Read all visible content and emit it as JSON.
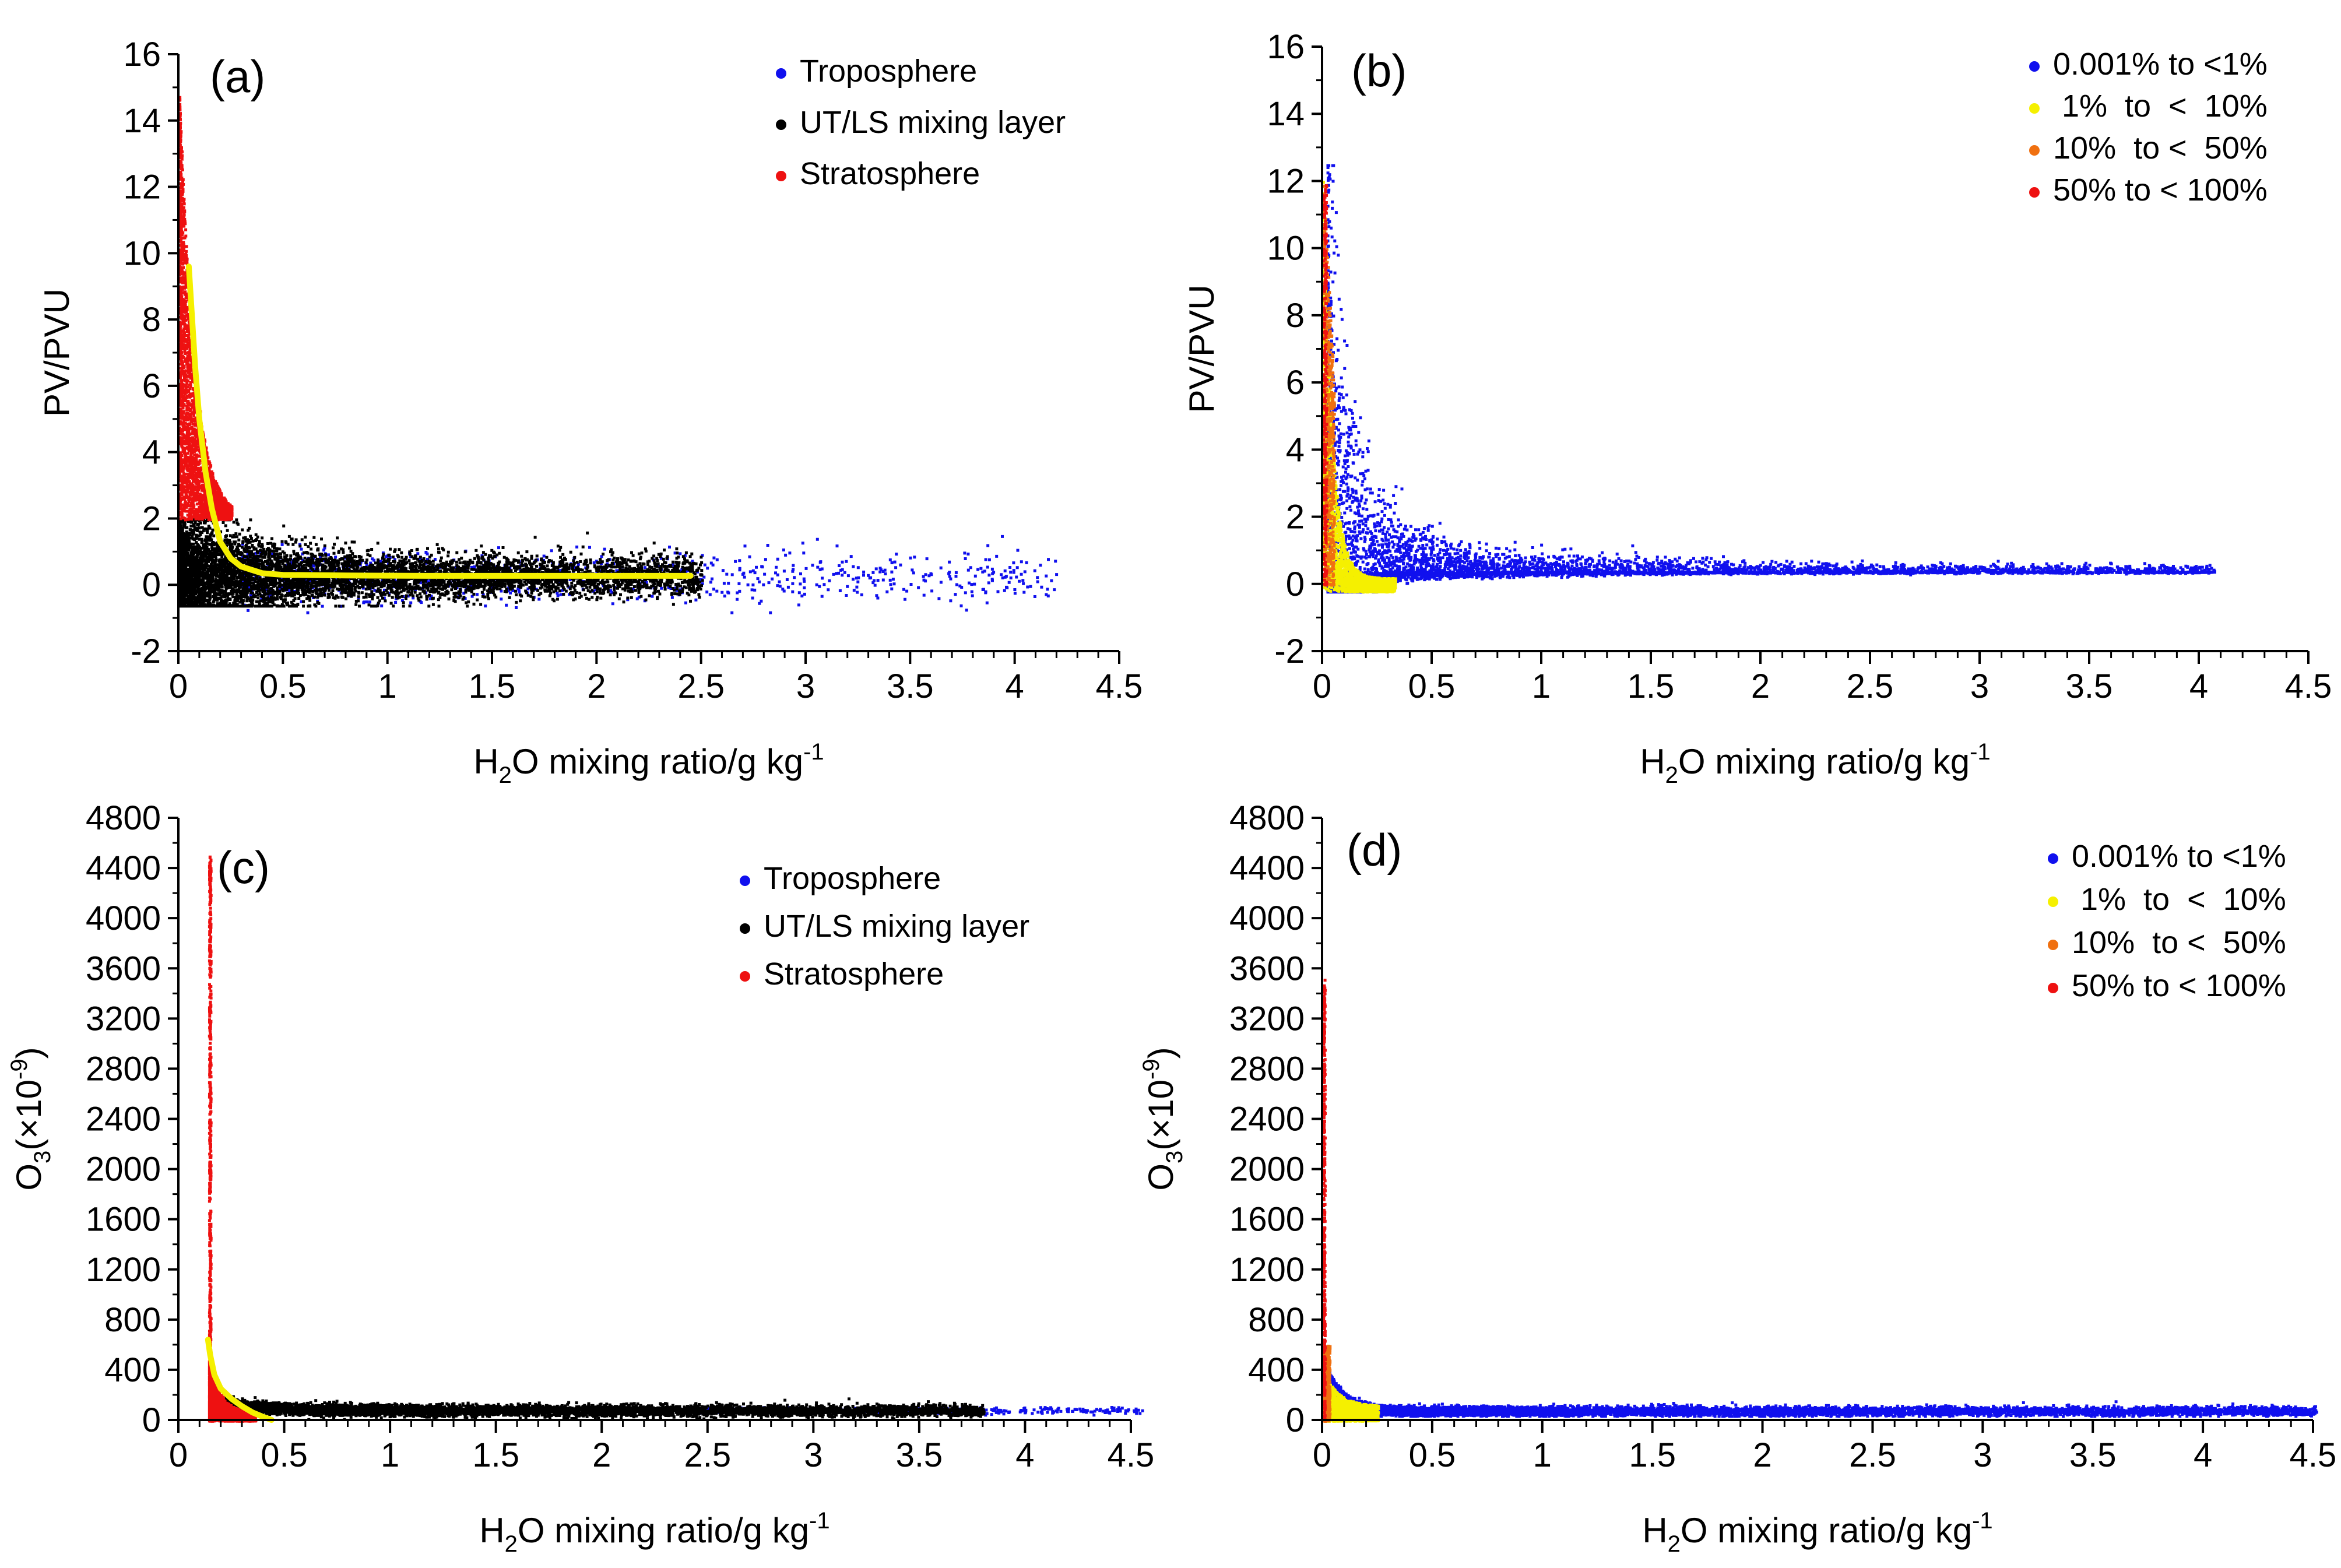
{
  "chart_data": [
    {
      "panel": "(a)",
      "type": "scatter",
      "xlabel_main": "H",
      "xlabel_sub": "2",
      "xlabel_rest": "O mixing ratio/g kg",
      "xlabel_sup": "-1",
      "ylabel": "PV/PVU",
      "xlim": [
        0,
        4.5
      ],
      "ylim": [
        -2,
        16
      ],
      "xticks": [
        0,
        0.5,
        1,
        1.5,
        2,
        2.5,
        3,
        3.5,
        4,
        4.5
      ],
      "xtick_labels": [
        "0",
        "0.5",
        "1",
        "1.5",
        "2",
        "2.5",
        "3",
        "3.5",
        "4",
        "4.5"
      ],
      "yticks": [
        -2,
        0,
        2,
        4,
        6,
        8,
        10,
        12,
        14,
        16
      ],
      "ytick_labels": [
        "-2",
        "0",
        "2",
        "4",
        "6",
        "8",
        "10",
        "12",
        "14",
        "16"
      ],
      "legend": [
        {
          "label": "Troposphere",
          "color": "#1010ee"
        },
        {
          "label": "UT/LS mixing layer",
          "color": "#000000"
        },
        {
          "label": "Stratosphere",
          "color": "#ee1111"
        }
      ],
      "fit_curve": {
        "color": "#f5f000",
        "x": [
          0.05,
          0.06,
          0.08,
          0.1,
          0.13,
          0.16,
          0.2,
          0.25,
          0.3,
          0.4,
          0.5,
          0.8,
          1.2,
          1.8,
          2.45
        ],
        "y": [
          9.6,
          8.6,
          6.6,
          5.0,
          3.4,
          2.3,
          1.3,
          0.8,
          0.55,
          0.35,
          0.3,
          0.28,
          0.27,
          0.27,
          0.27
        ]
      },
      "clusters": {
        "stratosphere": {
          "color": "#ee1111",
          "description": "Dense points for H2O 0-0.25 g/kg, PV 2-15 PVU, decaying with H2O"
        },
        "mixing_layer": {
          "color": "#000000",
          "description": "Dense band H2O 0-2.5 g/kg, PV -0.5-2 PVU"
        },
        "troposphere": {
          "color": "#1010ee",
          "description": "Sparse points H2O 0.3-4.2 g/kg, PV -0.8-1.4 PVU"
        }
      }
    },
    {
      "panel": "(b)",
      "type": "scatter",
      "xlabel_main": "H",
      "xlabel_sub": "2",
      "xlabel_rest": "O mixing ratio/g kg",
      "xlabel_sup": "-1",
      "ylabel": "PV/PVU",
      "xlim": [
        0,
        4.5
      ],
      "ylim": [
        -2,
        16
      ],
      "xticks": [
        0,
        0.5,
        1,
        1.5,
        2,
        2.5,
        3,
        3.5,
        4,
        4.5
      ],
      "xtick_labels": [
        "0",
        "0.5",
        "1",
        "1.5",
        "2",
        "2.5",
        "3",
        "3.5",
        "4",
        "4.5"
      ],
      "yticks": [
        -2,
        0,
        2,
        4,
        6,
        8,
        10,
        12,
        14,
        16
      ],
      "ytick_labels": [
        "-2",
        "0",
        "2",
        "4",
        "6",
        "8",
        "10",
        "12",
        "14",
        "16"
      ],
      "legend": [
        {
          "label": "0.001% to <1%",
          "color": "#1010ee"
        },
        {
          "label": " 1%  to  <  10%",
          "color": "#f5f000"
        },
        {
          "label": "10%  to <  50%",
          "color": "#f07010"
        },
        {
          "label": "50% to < 100%",
          "color": "#ee1111"
        }
      ],
      "clusters": {
        "0.001% to <1%": {
          "color": "#1010ee",
          "description": "Spike to 12.5 PVU near H2O 0.03, long tail to H2O 4.1 at PV ~0.5"
        },
        "1% to <10%": {
          "color": "#f5f000",
          "description": "H2O 0-0.35, PV -0.2-12.5"
        },
        "10% to <50%": {
          "color": "#f07010",
          "description": "H2O 0-0.05, PV 0-12.5"
        },
        "50% to <100%": {
          "color": "#ee1111",
          "description": "H2O ~0-0.02, PV 0-12"
        }
      }
    },
    {
      "panel": "(c)",
      "type": "scatter",
      "xlabel_main": "H",
      "xlabel_sub": "2",
      "xlabel_rest": "O mixing ratio/g kg",
      "xlabel_sup": "-1",
      "ylabel_main": "O",
      "ylabel_sub": "3",
      "ylabel_rest": "(×10",
      "ylabel_sup": "-9",
      "ylabel_end": ")",
      "xlim": [
        0,
        4.5
      ],
      "ylim": [
        0,
        4800
      ],
      "xticks": [
        0,
        0.5,
        1,
        1.5,
        2,
        2.5,
        3,
        3.5,
        4,
        4.5
      ],
      "xtick_labels": [
        "0",
        "0.5",
        "1",
        "1.5",
        "2",
        "2.5",
        "3",
        "3.5",
        "4",
        "4.5"
      ],
      "yticks": [
        0,
        400,
        800,
        1200,
        1600,
        2000,
        2400,
        2800,
        3200,
        3600,
        4000,
        4400,
        4800
      ],
      "ytick_labels": [
        "0",
        "400",
        "800",
        "1200",
        "1600",
        "2000",
        "2400",
        "2800",
        "3200",
        "3600",
        "4000",
        "4400",
        "4800"
      ],
      "legend": [
        {
          "label": "Troposphere",
          "color": "#1010ee"
        },
        {
          "label": "UT/LS mixing layer",
          "color": "#000000"
        },
        {
          "label": "Stratosphere",
          "color": "#ee1111"
        }
      ],
      "fit_curve": {
        "color": "#f5f000",
        "x": [
          0.14,
          0.15,
          0.17,
          0.2,
          0.25,
          0.3,
          0.35,
          0.4,
          0.44
        ],
        "y": [
          640,
          520,
          360,
          250,
          170,
          110,
          60,
          25,
          0
        ]
      },
      "clusters": {
        "stratosphere": {
          "color": "#ee1111",
          "description": "Vertical spike at H2O ~0.14, O3 0-4500; blob H2O 0.14-0.35, O3 0-400"
        },
        "mixing_layer": {
          "color": "#000000",
          "description": "Band H2O 0.15-3.8, O3 20-150"
        },
        "troposphere": {
          "color": "#1010ee",
          "description": "Sparse H2O 2-4.55, O3 60-110"
        }
      }
    },
    {
      "panel": "(d)",
      "type": "scatter",
      "xlabel_main": "H",
      "xlabel_sub": "2",
      "xlabel_rest": "O mixing ratio/g kg",
      "xlabel_sup": "-1",
      "ylabel_main": "O",
      "ylabel_sub": "3",
      "ylabel_rest": "(×10",
      "ylabel_sup": "-9",
      "ylabel_end": ")",
      "xlim": [
        0,
        4.5
      ],
      "ylim": [
        0,
        4800
      ],
      "xticks": [
        0,
        0.5,
        1,
        1.5,
        2,
        2.5,
        3,
        3.5,
        4,
        4.5
      ],
      "xtick_labels": [
        "0",
        "0.5",
        "1",
        "1.5",
        "2",
        "2.5",
        "3",
        "3.5",
        "4",
        "4.5"
      ],
      "yticks": [
        0,
        400,
        800,
        1200,
        1600,
        2000,
        2400,
        2800,
        3200,
        3600,
        4000,
        4400,
        4800
      ],
      "ytick_labels": [
        "0",
        "400",
        "800",
        "1200",
        "1600",
        "2000",
        "2400",
        "2800",
        "3200",
        "3600",
        "4000",
        "4400",
        "4800"
      ],
      "legend": [
        {
          "label": "0.001% to <1%",
          "color": "#1010ee"
        },
        {
          "label": " 1%  to  <  10%",
          "color": "#f5f000"
        },
        {
          "label": "10%  to <  50%",
          "color": "#f07010"
        },
        {
          "label": "50% to < 100%",
          "color": "#ee1111"
        }
      ],
      "clusters": {
        "0.001% to <1%": {
          "color": "#1010ee",
          "description": "Curve from O3 700 at H2O ~0.01 decaying to O3 ~80, tail to H2O 4.5"
        },
        "1% to <10%": {
          "color": "#f5f000",
          "description": "H2O 0-0.25, O3 0-400"
        },
        "10% to <50%": {
          "color": "#f07010",
          "description": "H2O 0-0.03, O3 0-600"
        },
        "50% to <100%": {
          "color": "#ee1111",
          "description": "Vertical spike at H2O ~0, O3 0-3550"
        }
      }
    }
  ]
}
